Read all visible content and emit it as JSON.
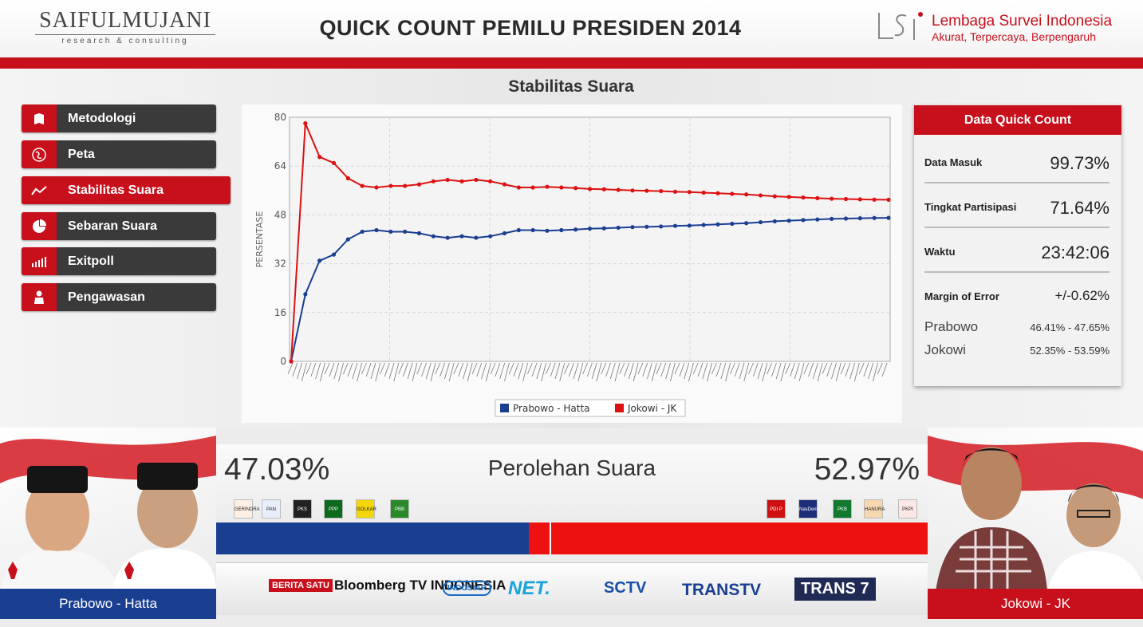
{
  "header": {
    "logo_left_name": "SAIFULMUJANI",
    "logo_left_sub": "research & consulting",
    "title": "QUICK COUNT PEMILU PRESIDEN 2014",
    "logo_right_name": "Lembaga Survei Indonesia",
    "logo_right_tagline": "Akurat, Terpercaya, Berpengaruh"
  },
  "section_title": "Stabilitas Suara",
  "menu": {
    "items": [
      {
        "label": "Metodologi",
        "icon": "book-icon",
        "active": false
      },
      {
        "label": "Peta",
        "icon": "globe-icon",
        "active": false
      },
      {
        "label": "Stabilitas Suara",
        "icon": "trend-line-icon",
        "active": true
      },
      {
        "label": "Sebaran Suara",
        "icon": "pie-chart-icon",
        "active": false
      },
      {
        "label": "Exitpoll",
        "icon": "bar-chart-icon",
        "active": false
      },
      {
        "label": "Pengawasan",
        "icon": "person-icon",
        "active": false
      }
    ]
  },
  "chart_data": {
    "type": "line",
    "ylabel": "PERSENTASE",
    "ylim": [
      0,
      80
    ],
    "yticks": [
      0,
      16,
      32,
      48,
      64,
      80
    ],
    "grid": true,
    "legend_position": "bottom",
    "series": [
      {
        "name": "Prabowo - Hatta",
        "color": "#1a3f91",
        "values": [
          0,
          22,
          33,
          35,
          40,
          42.5,
          43,
          42.5,
          42.5,
          42,
          41,
          40.5,
          41,
          40.5,
          41,
          42,
          43,
          43,
          42.8,
          43,
          43.2,
          43.5,
          43.6,
          43.8,
          44,
          44.1,
          44.2,
          44.4,
          44.5,
          44.7,
          44.9,
          45.1,
          45.3,
          45.6,
          45.9,
          46.1,
          46.3,
          46.5,
          46.7,
          46.8,
          46.9,
          47.0,
          47.03
        ]
      },
      {
        "name": "Jokowi - JK",
        "color": "#dd1111",
        "values": [
          0,
          78,
          67,
          65,
          60,
          57.5,
          57,
          57.5,
          57.5,
          58,
          59,
          59.5,
          59,
          59.5,
          59,
          58,
          57,
          57,
          57.2,
          57,
          56.8,
          56.5,
          56.4,
          56.2,
          56,
          55.9,
          55.8,
          55.6,
          55.5,
          55.3,
          55.1,
          54.9,
          54.7,
          54.4,
          54.1,
          53.9,
          53.7,
          53.5,
          53.3,
          53.2,
          53.1,
          53.0,
          52.97
        ]
      }
    ]
  },
  "panel": {
    "title": "Data Quick Count",
    "rows": [
      {
        "label": "Data Masuk",
        "value": "99.73%"
      },
      {
        "label": "Tingkat Partisipasi",
        "value": "71.64%"
      },
      {
        "label": "Waktu",
        "value": "23:42:06"
      },
      {
        "label": "Margin of Error",
        "value": "+/-0.62%"
      }
    ],
    "candidates": [
      {
        "name": "Prabowo",
        "range": "46.41% - 47.65%"
      },
      {
        "name": "Jokowi",
        "range": "52.35% - 53.59%"
      }
    ]
  },
  "result": {
    "title": "Perolehan Suara",
    "left_pct": "47.03%",
    "right_pct": "52.97%",
    "left_share": 47.03,
    "right_share": 52.97,
    "left_parties": [
      "GERINDRA",
      "PAN",
      "PKS",
      "PPP",
      "GOLKAR",
      "PBB"
    ],
    "right_parties": [
      "PDI P",
      "NasDem",
      "PKB",
      "HANURA",
      "PKPI"
    ]
  },
  "candidates": {
    "left_label": "Prabowo - Hatta",
    "right_label": "Jokowi - JK"
  },
  "media": {
    "logos": [
      "BERITA SATU",
      "Bloomberg TV INDONESIA",
      "INDOSIAR",
      "NET.",
      "SCTV",
      "TRANSTV",
      "TRANS 7"
    ]
  },
  "colors": {
    "accent_red": "#c8101c",
    "prabowo_blue": "#1a3f91",
    "jokowi_red": "#dd1111"
  }
}
